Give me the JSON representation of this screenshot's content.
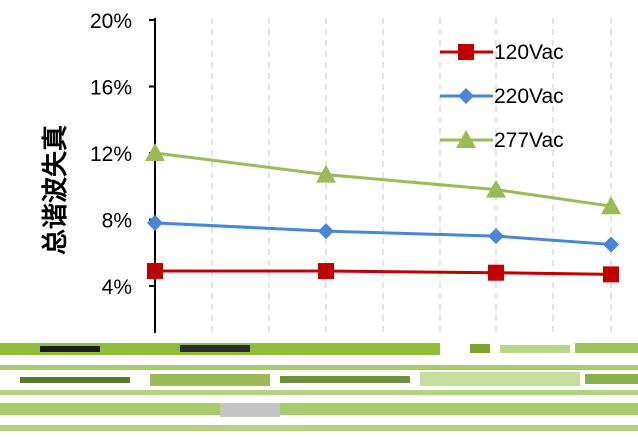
{
  "chart_data": {
    "type": "line",
    "title": "",
    "ylabel": "总谐波失真",
    "xlabel": "",
    "ylim": [
      0,
      20
    ],
    "y_ticks": [
      "4%",
      "8%",
      "12%",
      "16%",
      "20%"
    ],
    "x_points": 4,
    "grid": "vertical dashed",
    "legend_position": "top-right",
    "series": [
      {
        "name": "120Vac",
        "values": [
          4.9,
          4.9,
          4.8,
          4.7
        ],
        "color": "#c00000",
        "marker": "square"
      },
      {
        "name": "220Vac",
        "values": [
          7.8,
          7.3,
          7.0,
          6.5
        ],
        "color": "#4a86d8",
        "marker": "diamond"
      },
      {
        "name": "277Vac",
        "values": [
          12.0,
          10.7,
          9.8,
          8.8
        ],
        "color": "#9bbb59",
        "marker": "triangle"
      }
    ]
  }
}
